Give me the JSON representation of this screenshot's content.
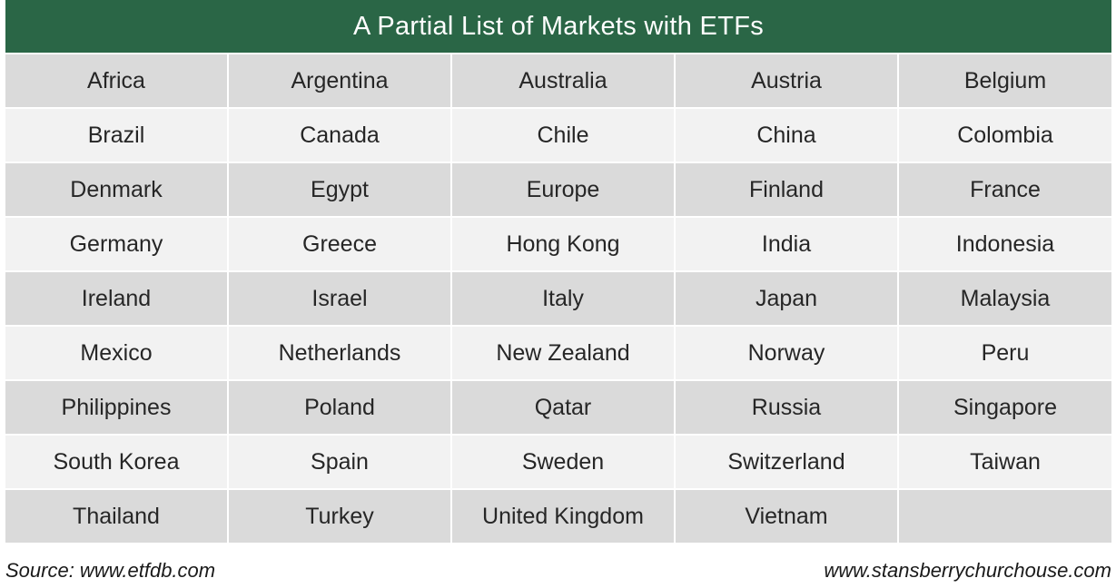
{
  "title": "A Partial List of Markets with ETFs",
  "rows": [
    [
      "Africa",
      "Argentina",
      "Australia",
      "Austria",
      "Belgium"
    ],
    [
      "Brazil",
      "Canada",
      "Chile",
      "China",
      "Colombia"
    ],
    [
      "Denmark",
      "Egypt",
      "Europe",
      "Finland",
      "France"
    ],
    [
      "Germany",
      "Greece",
      "Hong Kong",
      "India",
      "Indonesia"
    ],
    [
      "Ireland",
      "Israel",
      "Italy",
      "Japan",
      "Malaysia"
    ],
    [
      "Mexico",
      "Netherlands",
      "New Zealand",
      "Norway",
      "Peru"
    ],
    [
      "Philippines",
      "Poland",
      "Qatar",
      "Russia",
      "Singapore"
    ],
    [
      "South Korea",
      "Spain",
      "Sweden",
      "Switzerland",
      "Taiwan"
    ],
    [
      "Thailand",
      "Turkey",
      "United Kingdom",
      "Vietnam",
      ""
    ]
  ],
  "footer": {
    "source": "Source: www.etfdb.com",
    "website": "www.stansberrychurchouse.com"
  }
}
